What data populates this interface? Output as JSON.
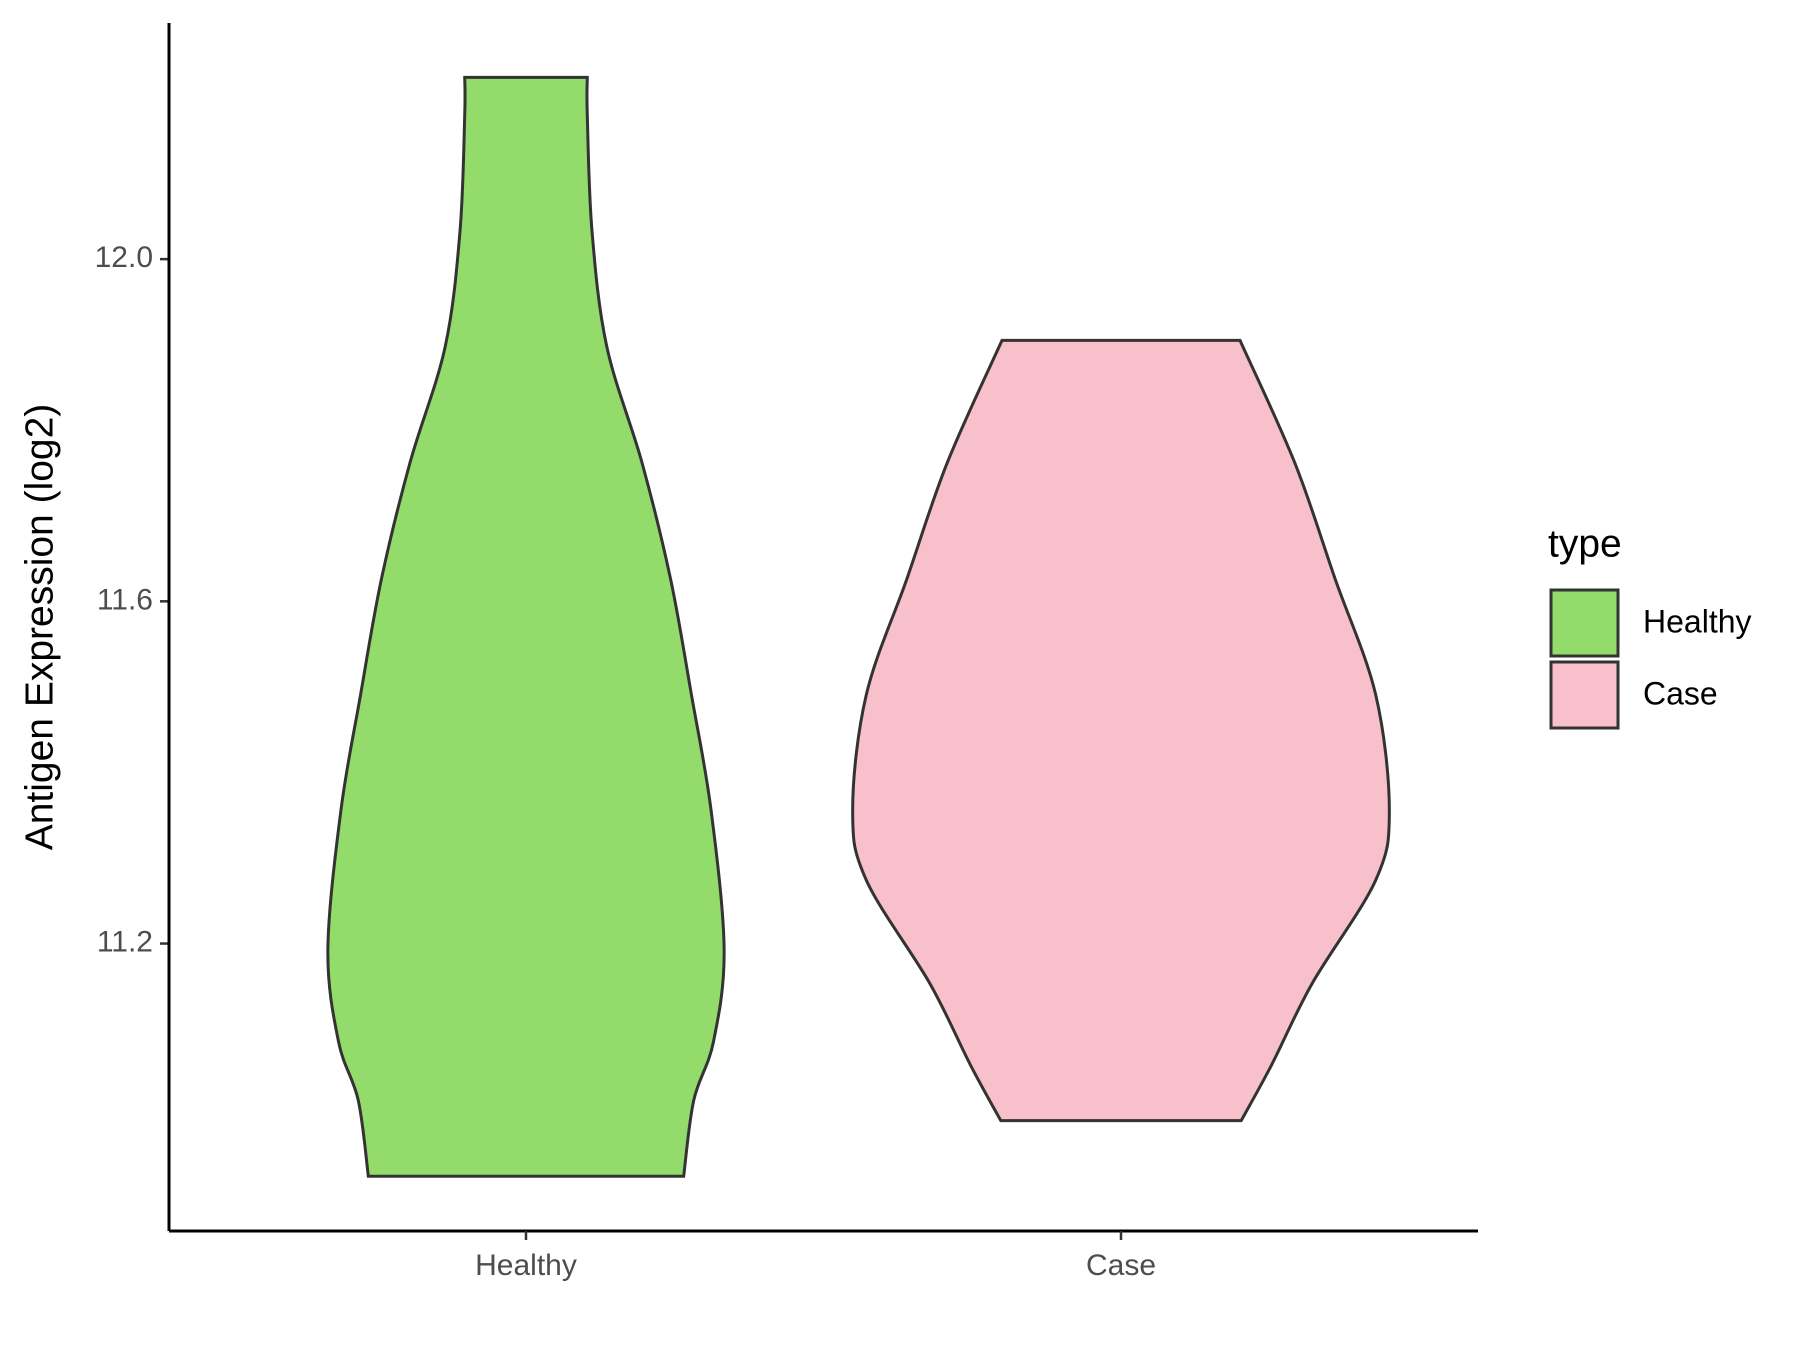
{
  "chart_data": {
    "type": "violin",
    "y_label": "Antigen Expression (log2)",
    "categories": [
      "Healthy",
      "Case"
    ],
    "legend_title": "type",
    "legend_position": "right",
    "series": [
      {
        "name": "Healthy",
        "color": "#93dc6b",
        "y": [
          12.2125,
          12.168,
          12.032,
          11.897,
          11.762,
          11.626,
          11.491,
          11.356,
          11.193,
          11.085,
          11.017,
          10.928
        ],
        "width": [
          0.103,
          0.103,
          0.111,
          0.136,
          0.195,
          0.243,
          0.278,
          0.311,
          0.333,
          0.315,
          0.282,
          0.265
        ]
      },
      {
        "name": "Case",
        "color": "#f7c0cb",
        "y": [
          11.905,
          11.762,
          11.626,
          11.491,
          11.356,
          11.274,
          11.153,
          11.058,
          10.993
        ],
        "width": [
          0.2,
          0.292,
          0.36,
          0.428,
          0.451,
          0.428,
          0.321,
          0.253,
          0.202
        ]
      }
    ],
    "ylim": [
      10.864,
      12.276
    ],
    "yticks": [
      11.2,
      11.6,
      {
        "value": 12.0,
        "label": "12.0"
      }
    ]
  }
}
